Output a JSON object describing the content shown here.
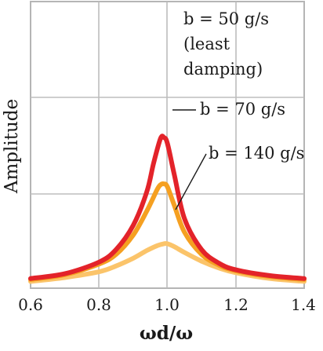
{
  "chart_data": {
    "type": "line",
    "xlabel": "ωd/ω",
    "ylabel": "Amplitude",
    "xlim": [
      0.6,
      1.4
    ],
    "x_ticks": [
      "0.6",
      "0.8",
      "1.0",
      "1.2",
      "1.4"
    ],
    "grid": true,
    "series": [
      {
        "name": "b = 140 g/s",
        "color": "#fbc46a",
        "x": [
          0.6,
          0.7,
          0.8,
          0.85,
          0.9,
          0.94,
          0.97,
          0.99,
          1.0,
          1.02,
          1.05,
          1.1,
          1.15,
          1.2,
          1.3,
          1.4
        ],
        "y": [
          0.07,
          0.11,
          0.17,
          0.23,
          0.31,
          0.39,
          0.44,
          0.46,
          0.46,
          0.43,
          0.37,
          0.28,
          0.21,
          0.16,
          0.1,
          0.07
        ]
      },
      {
        "name": "b = 70 g/s",
        "color": "#f5a021",
        "x": [
          0.6,
          0.7,
          0.8,
          0.85,
          0.9,
          0.94,
          0.97,
          0.98,
          0.99,
          1.0,
          1.02,
          1.05,
          1.1,
          1.15,
          1.2,
          1.3,
          1.4
        ],
        "y": [
          0.09,
          0.14,
          0.25,
          0.35,
          0.55,
          0.8,
          1.02,
          1.07,
          1.08,
          1.05,
          0.86,
          0.58,
          0.35,
          0.24,
          0.18,
          0.12,
          0.09
        ]
      },
      {
        "name": "b = 50 g/s",
        "color": "#e3232a",
        "x": [
          0.6,
          0.7,
          0.8,
          0.85,
          0.9,
          0.94,
          0.96,
          0.98,
          0.99,
          1.0,
          1.02,
          1.05,
          1.1,
          1.15,
          1.2,
          1.3,
          1.4
        ],
        "y": [
          0.1,
          0.15,
          0.27,
          0.4,
          0.65,
          1.0,
          1.3,
          1.55,
          1.56,
          1.5,
          1.18,
          0.72,
          0.4,
          0.26,
          0.19,
          0.13,
          0.1
        ]
      }
    ],
    "annotations": {
      "b50_line1": "b = 50 g/s",
      "b50_line2": "(least",
      "b50_line3": "damping)",
      "b70": "b = 70 g/s",
      "b140": "b = 140 g/s"
    }
  }
}
